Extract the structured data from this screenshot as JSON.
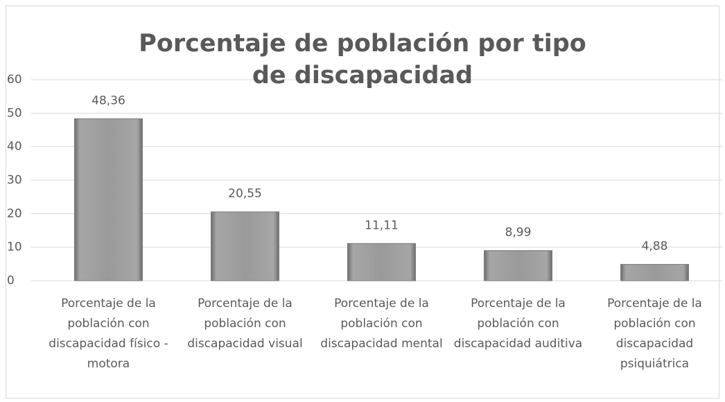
{
  "chart_data": {
    "type": "bar",
    "title": "Porcentaje de población por tipo de discapacidad",
    "categories": [
      "Porcentaje de la población con discapacidad físico - motora",
      "Porcentaje de la población con discapacidad visual",
      "Porcentaje de la población con discapacidad mental",
      "Porcentaje de la población con discapacidad auditiva",
      "Porcentaje de la población con discapacidad psiquiátrica"
    ],
    "values": [
      48.36,
      20.55,
      11.11,
      8.99,
      4.88
    ],
    "value_labels": [
      "48,36",
      "20,55",
      "11,11",
      "8,99",
      "4,88"
    ],
    "color": "#8c8c8c",
    "ylim": [
      0,
      60
    ],
    "yticks": [
      0,
      10,
      20,
      30,
      40,
      50,
      60
    ],
    "grid": true
  }
}
